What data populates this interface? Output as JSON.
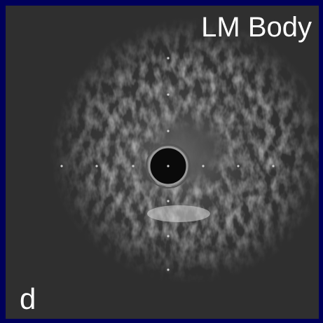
{
  "image": {
    "title": "LM Body",
    "panel_label": "d"
  }
}
